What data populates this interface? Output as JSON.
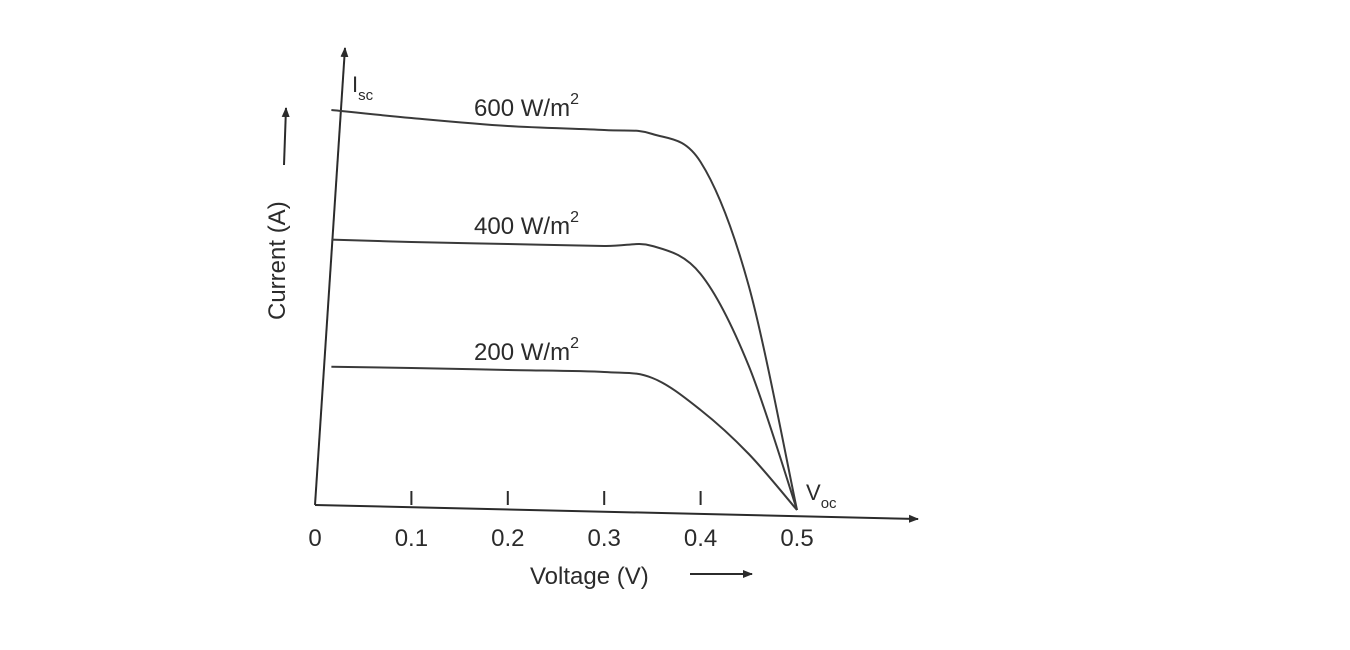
{
  "chart_data": {
    "type": "line",
    "xlabel": "Voltage (V)",
    "ylabel": "Current (A)",
    "x_ticks": [
      "0",
      "0.1",
      "0.2",
      "0.3",
      "0.4",
      "0.5"
    ],
    "xlim": [
      0,
      0.52
    ],
    "ylim": [
      0,
      1.0
    ],
    "annotations": {
      "isc": {
        "main": "I",
        "sub": "sc"
      },
      "voc": {
        "main": "V",
        "sub": "oc"
      }
    },
    "series": [
      {
        "name": "600 W/m",
        "sup": "2",
        "x": [
          0.017,
          0.1,
          0.2,
          0.3,
          0.35,
          0.4,
          0.45,
          0.5
        ],
        "y": [
          1.0,
          0.98,
          0.96,
          0.95,
          0.94,
          0.87,
          0.56,
          0.0
        ]
      },
      {
        "name": "400 W/m",
        "sup": "2",
        "x": [
          0.017,
          0.1,
          0.2,
          0.3,
          0.35,
          0.4,
          0.45,
          0.5
        ],
        "y": [
          0.676,
          0.67,
          0.665,
          0.66,
          0.66,
          0.59,
          0.36,
          0.0
        ]
      },
      {
        "name": "200 W/m",
        "sup": "2",
        "x": [
          0.017,
          0.1,
          0.2,
          0.3,
          0.35,
          0.4,
          0.45,
          0.5
        ],
        "y": [
          0.358,
          0.355,
          0.35,
          0.345,
          0.33,
          0.25,
          0.14,
          0.0
        ]
      }
    ]
  }
}
